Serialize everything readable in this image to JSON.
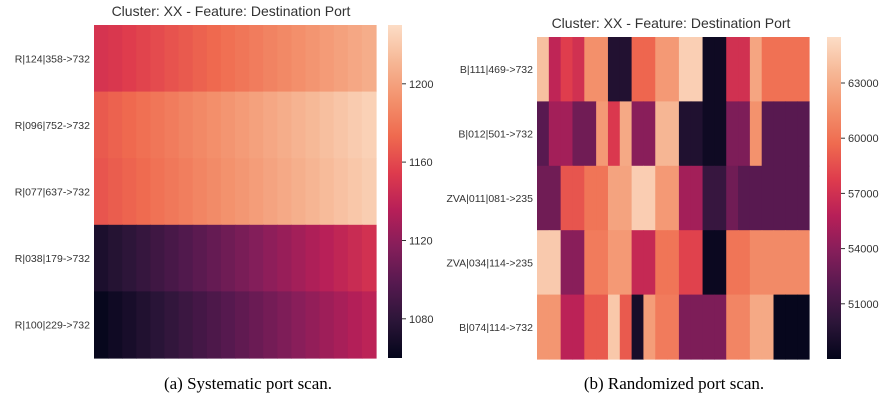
{
  "captions": {
    "a": "(a) Systematic port scan.",
    "b": "(b) Randomized port scan."
  },
  "colors": {
    "colormap": [
      "#03051a",
      "#2b1538",
      "#55194f",
      "#851e5a",
      "#b71f58",
      "#de3b4d",
      "#ef6a4f",
      "#f3926d",
      "#f6b795",
      "#fcddc6"
    ]
  },
  "chart_data": [
    {
      "type": "heatmap",
      "title": "Cluster: XX - Feature: Destination Port",
      "rows": [
        "R|124|358->732",
        "R|096|752->732",
        "R|077|637->732",
        "R|038|179->732",
        "R|100|229->732"
      ],
      "n_cols": 20,
      "values": [
        [
          1150,
          1152,
          1155,
          1158,
          1161,
          1164,
          1167,
          1170,
          1173,
          1176,
          1179,
          1182,
          1185,
          1188,
          1191,
          1194,
          1197,
          1200,
          1203,
          1206
        ],
        [
          1167,
          1170,
          1173,
          1176,
          1179,
          1182,
          1185,
          1188,
          1191,
          1194,
          1197,
          1200,
          1203,
          1206,
          1209,
          1212,
          1215,
          1218,
          1221,
          1224
        ],
        [
          1165,
          1168,
          1171,
          1174,
          1177,
          1180,
          1183,
          1186,
          1189,
          1192,
          1195,
          1198,
          1201,
          1204,
          1207,
          1210,
          1213,
          1216,
          1219,
          1222
        ],
        [
          1072,
          1076,
          1080,
          1084,
          1088,
          1092,
          1096,
          1100,
          1104,
          1108,
          1112,
          1116,
          1120,
          1124,
          1128,
          1132,
          1136,
          1140,
          1144,
          1148
        ],
        [
          1062,
          1066,
          1070,
          1074,
          1078,
          1082,
          1086,
          1090,
          1094,
          1098,
          1102,
          1106,
          1110,
          1114,
          1118,
          1122,
          1126,
          1130,
          1134,
          1138
        ]
      ],
      "colorbar": {
        "range": [
          1060,
          1230
        ],
        "ticks": [
          1080,
          1120,
          1160,
          1200
        ]
      }
    },
    {
      "type": "heatmap",
      "title": "Cluster: XX - Feature: Destination Port",
      "rows": [
        "B|111|469->732",
        "B|012|501->732",
        "ZVA|011|081->235",
        "ZVA|034|114->235",
        "B|074|114->732"
      ],
      "n_cols": 23,
      "values": [
        [
          64000,
          56200,
          57800,
          57000,
          61500,
          61500,
          49500,
          49500,
          59500,
          59500,
          62000,
          62000,
          64800,
          64800,
          48600,
          48600,
          57000,
          57000,
          62600,
          60000,
          60000,
          60000,
          60000
        ],
        [
          52000,
          55000,
          55000,
          53000,
          53000,
          62000,
          57500,
          62800,
          54000,
          54000,
          63500,
          63500,
          49400,
          49400,
          48600,
          48600,
          53500,
          53500,
          61600,
          52000,
          52000,
          52000,
          52000
        ],
        [
          53000,
          53000,
          58800,
          58800,
          60200,
          60200,
          62500,
          62500,
          64700,
          64700,
          62000,
          62000,
          55000,
          55000,
          50500,
          50500,
          53000,
          52000,
          52000,
          52000,
          52000,
          52000,
          52000
        ],
        [
          64500,
          64500,
          54000,
          54000,
          60500,
          60500,
          62000,
          62000,
          56500,
          56500,
          60200,
          60200,
          58000,
          58000,
          48400,
          48400,
          60200,
          60200,
          61200,
          61200,
          61200,
          61200,
          61200
        ],
        [
          61800,
          61800,
          56000,
          56000,
          59000,
          59000,
          64400,
          59000,
          49000,
          62200,
          60500,
          60500,
          53500,
          53500,
          53500,
          53500,
          61000,
          61000,
          62800,
          62800,
          48200,
          48200,
          48200
        ]
      ],
      "colorbar": {
        "range": [
          48000,
          65500
        ],
        "ticks": [
          51000,
          54000,
          57000,
          60000,
          63000
        ]
      }
    }
  ]
}
